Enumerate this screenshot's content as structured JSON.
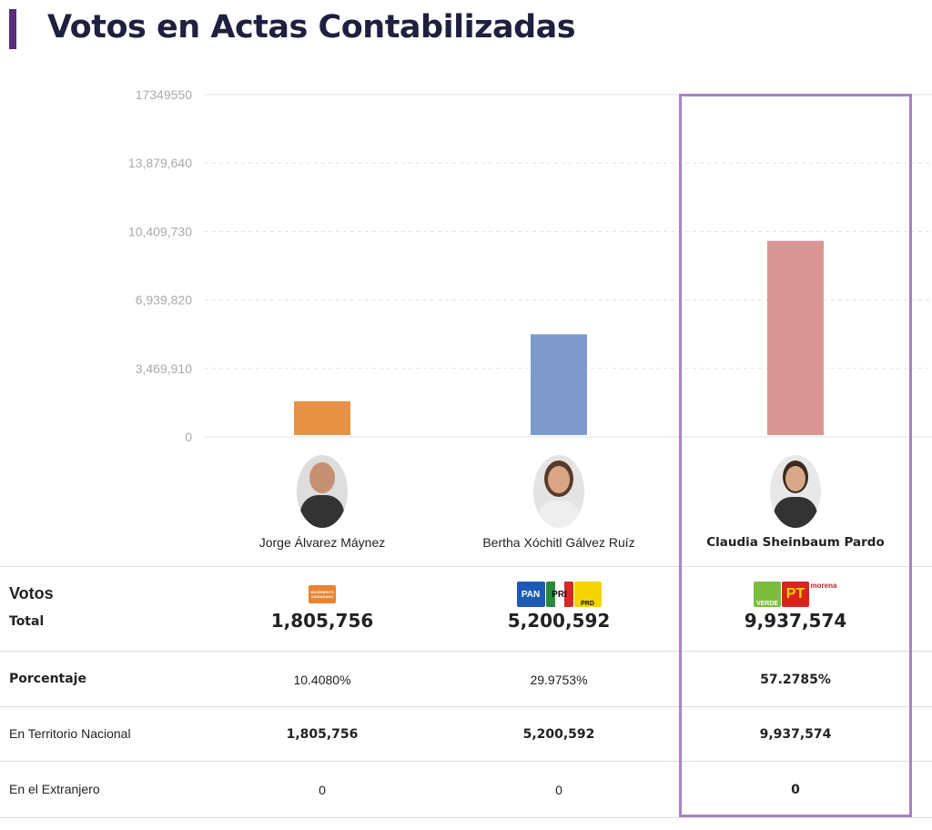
{
  "title": "Votos en Actas Contabilizadas",
  "chart_data": {
    "type": "bar",
    "categories": [
      "Jorge Álvarez Máynez",
      "Bertha Xóchitl Gálvez Ruíz",
      "Claudia Sheinbaum Pardo"
    ],
    "values": [
      1805756,
      5200592,
      9937574
    ],
    "colors": [
      "#e89145",
      "#7e9acc",
      "#d99694"
    ],
    "ylim": [
      0,
      17349550
    ],
    "yticks": [
      "0",
      "3,469,910",
      "6,939,820",
      "10,409,730",
      "13,879,640",
      "17349550"
    ],
    "ytick_values": [
      0,
      3469910,
      6939820,
      10409730,
      13879640,
      17349550
    ],
    "grid": true,
    "highlighted": "Claudia Sheinbaum Pardo",
    "highlight_color": "#a883bf"
  },
  "table": {
    "row_labels": {
      "votos": "Votos",
      "total": "Total",
      "porcentaje": "Porcentaje",
      "nacional": "En Territorio Nacional",
      "extranjero": "En el Extranjero"
    },
    "candidates": [
      {
        "name": "Jorge Álvarez Máynez",
        "parties": [
          "MOVIMIENTO CIUDADANO"
        ],
        "total": "1,805,756",
        "porcentaje": "10.4080%",
        "nacional": "1,805,756",
        "extranjero": "0"
      },
      {
        "name": "Bertha Xóchitl Gálvez Ruíz",
        "parties": [
          "PAN",
          "PRI",
          "PRD"
        ],
        "total": "5,200,592",
        "porcentaje": "29.9753%",
        "nacional": "5,200,592",
        "extranjero": "0"
      },
      {
        "name": "Claudia Sheinbaum Pardo",
        "parties": [
          "VERDE",
          "PT",
          "morena"
        ],
        "total": "9,937,574",
        "porcentaje": "57.2785%",
        "nacional": "9,937,574",
        "extranjero": "0"
      }
    ]
  }
}
